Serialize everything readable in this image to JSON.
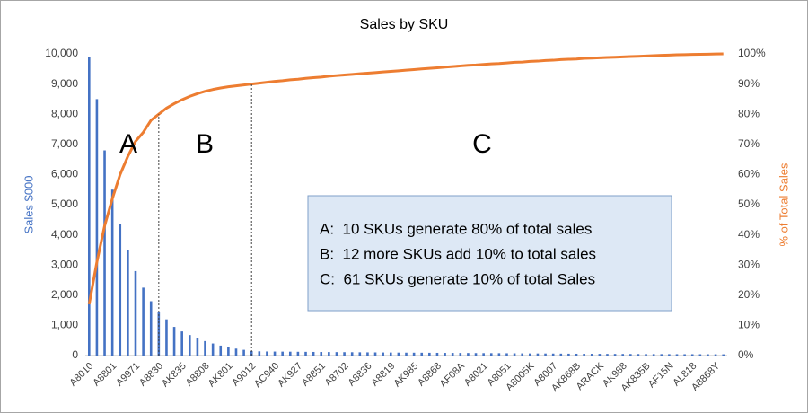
{
  "chart_data": {
    "type": "pareto",
    "title": "Sales by SKU",
    "y_label": "Sales $000",
    "y2_label": "% of Total Sales",
    "categories": [
      "A8010",
      null,
      null,
      "A8801",
      null,
      null,
      "A9971",
      null,
      null,
      "A8830",
      null,
      null,
      "AK835",
      null,
      null,
      "A8808",
      null,
      null,
      "AK801",
      null,
      null,
      "A9012",
      null,
      null,
      "AC940",
      null,
      null,
      "AK927",
      null,
      null,
      "A8851",
      null,
      null,
      "A8702",
      null,
      null,
      "A8836",
      null,
      null,
      "A8819",
      null,
      null,
      "AK985",
      null,
      null,
      "A8868",
      null,
      null,
      "AF08A",
      null,
      null,
      "A8021",
      null,
      null,
      "A8051",
      null,
      null,
      "A8005K",
      null,
      null,
      "A8007",
      null,
      null,
      "AK868B",
      null,
      null,
      "ARACK",
      null,
      null,
      "AK988",
      null,
      null,
      "AK835B",
      null,
      null,
      "AF15N",
      null,
      null,
      "AL818",
      null,
      null,
      "A8868Y",
      null
    ],
    "series": [
      {
        "name": "Sales $000",
        "type": "bar",
        "color": "#4472c4",
        "values": [
          9900,
          8500,
          6800,
          5500,
          4350,
          3500,
          2800,
          2250,
          1800,
          1450,
          1200,
          950,
          800,
          680,
          580,
          480,
          400,
          330,
          280,
          230,
          190,
          150,
          140,
          135,
          132,
          130,
          128,
          125,
          123,
          120,
          118,
          116,
          114,
          112,
          110,
          108,
          106,
          104,
          102,
          100,
          98,
          96,
          95,
          94,
          92,
          90,
          88,
          87,
          86,
          84,
          82,
          80,
          79,
          78,
          76,
          74,
          72,
          70,
          69,
          68,
          66,
          64,
          62,
          60,
          59,
          58,
          56,
          55,
          54,
          53,
          52,
          51,
          50,
          49,
          48,
          47,
          46,
          45,
          45,
          44,
          44,
          43,
          42
        ]
      },
      {
        "name": "% of Total Sales",
        "type": "line",
        "axis": "y2",
        "color": "#ed7d31",
        "values": [
          17,
          31,
          43,
          52,
          60,
          66,
          71,
          74,
          78,
          80,
          82,
          83.5,
          84.8,
          85.9,
          86.8,
          87.6,
          88.2,
          88.7,
          89.1,
          89.4,
          89.7,
          90.0,
          90.3,
          90.6,
          90.9,
          91.1,
          91.4,
          91.6,
          91.9,
          92.1,
          92.3,
          92.6,
          92.8,
          93.0,
          93.2,
          93.4,
          93.6,
          93.8,
          94.0,
          94.2,
          94.4,
          94.6,
          94.8,
          95.0,
          95.2,
          95.4,
          95.6,
          95.8,
          96.0,
          96.2,
          96.3,
          96.5,
          96.7,
          96.8,
          97.0,
          97.2,
          97.3,
          97.5,
          97.6,
          97.8,
          97.9,
          98.1,
          98.2,
          98.3,
          98.5,
          98.6,
          98.7,
          98.8,
          98.9,
          99.0,
          99.1,
          99.2,
          99.3,
          99.4,
          99.5,
          99.6,
          99.7,
          99.75,
          99.8,
          99.85,
          99.9,
          99.95,
          100
        ]
      }
    ],
    "ylim": [
      0,
      10000
    ],
    "yticks": [
      0,
      {
        "value": 1000,
        "label": "1,000"
      },
      {
        "value": 2000,
        "label": "2,000"
      },
      {
        "value": 3000,
        "label": "3,000"
      },
      {
        "value": 4000,
        "label": "4,000"
      },
      {
        "value": 5000,
        "label": "5,000"
      },
      {
        "value": 6000,
        "label": "6,000"
      },
      {
        "value": 7000,
        "label": "7,000"
      },
      {
        "value": 8000,
        "label": "8,000"
      },
      {
        "value": 9000,
        "label": "9,000"
      },
      {
        "value": 10000,
        "label": "10,000"
      }
    ],
    "y2lim": [
      0,
      100
    ],
    "y2ticks": [
      {
        "value": 0,
        "label": "0%"
      },
      {
        "value": 10,
        "label": "10%"
      },
      {
        "value": 20,
        "label": "20%"
      },
      {
        "value": 30,
        "label": "30%"
      },
      {
        "value": 40,
        "label": "40%"
      },
      {
        "value": 50,
        "label": "50%"
      },
      {
        "value": 60,
        "label": "60%"
      },
      {
        "value": 70,
        "label": "70%"
      },
      {
        "value": 80,
        "label": "80%"
      },
      {
        "value": 90,
        "label": "90%"
      },
      {
        "value": 100,
        "label": "100%"
      }
    ],
    "grid": false,
    "annotations": {
      "regions": [
        "A",
        "B",
        "C"
      ],
      "box": [
        "A:  10 SKUs generate 80% of total sales",
        "B:  12 more SKUs add 10% to total sales",
        "C:  61 SKUs generate 10% of total Sales"
      ]
    }
  }
}
